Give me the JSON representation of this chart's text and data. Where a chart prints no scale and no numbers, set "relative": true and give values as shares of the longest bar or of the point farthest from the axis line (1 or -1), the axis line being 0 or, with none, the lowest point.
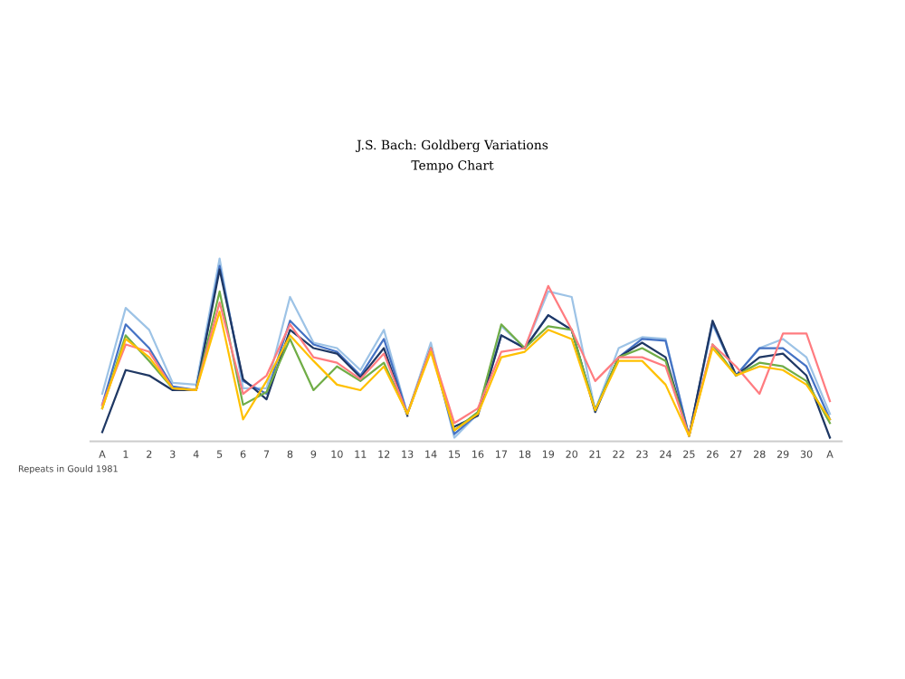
{
  "chart_data": {
    "type": "line",
    "title": "J.S. Bach: Goldberg Variations",
    "subtitle": "Tempo Chart",
    "relative": true,
    "annotations": [
      "Repeats in Gould 1981"
    ],
    "categories": [
      "A",
      "1",
      "2",
      "3",
      "4",
      "5",
      "6",
      "7",
      "8",
      "9",
      "10",
      "11",
      "12",
      "13",
      "14",
      "15",
      "16",
      "17",
      "18",
      "19",
      "20",
      "21",
      "22",
      "23",
      "24",
      "25",
      "26",
      "27",
      "28",
      "29",
      "30",
      "A"
    ],
    "series": [
      {
        "color": "#9dc3e6",
        "values": [
          0.26,
          0.73,
          0.61,
          0.32,
          0.31,
          1,
          0.29,
          0.29,
          0.79,
          0.54,
          0.51,
          0.39,
          0.61,
          0.15,
          0.54,
          0.02,
          0.15,
          0.63,
          0.51,
          0.82,
          0.79,
          0.17,
          0.51,
          0.57,
          0.56,
          0.03,
          0.64,
          0.36,
          0.51,
          0.56,
          0.46,
          0.15
        ]
      },
      {
        "color": "#4472c4",
        "values": [
          0.2,
          0.64,
          0.51,
          0.3,
          0.28,
          0.96,
          0.33,
          0.26,
          0.66,
          0.53,
          0.49,
          0.36,
          0.56,
          0.15,
          0.51,
          0.04,
          0.15,
          0.58,
          0.51,
          0.69,
          0.61,
          0.17,
          0.46,
          0.56,
          0.55,
          0.03,
          0.65,
          0.36,
          0.51,
          0.51,
          0.41,
          0.12
        ]
      },
      {
        "color": "#1f3864",
        "values": [
          0.05,
          0.39,
          0.36,
          0.28,
          0.28,
          0.94,
          0.34,
          0.23,
          0.61,
          0.51,
          0.48,
          0.35,
          0.51,
          0.14,
          null,
          0.08,
          0.14,
          0.58,
          0.51,
          0.69,
          0.61,
          0.16,
          0.46,
          0.54,
          0.46,
          0.03,
          0.66,
          0.36,
          0.46,
          0.48,
          0.36,
          0.02
        ]
      },
      {
        "color": "#70ad47",
        "values": [
          0.18,
          0.58,
          0.44,
          0.29,
          0.28,
          0.82,
          0.2,
          0.27,
          0.56,
          0.28,
          0.41,
          0.33,
          0.43,
          0.15,
          0.51,
          0.06,
          0.16,
          0.64,
          0.51,
          0.63,
          0.61,
          0.17,
          0.46,
          0.51,
          0.44,
          0.03,
          0.53,
          0.36,
          0.43,
          0.41,
          0.33,
          0.1
        ]
      },
      {
        "color": "#ff7c80",
        "values": [
          0.2,
          0.53,
          0.49,
          0.29,
          0.28,
          0.76,
          0.26,
          0.36,
          0.64,
          0.46,
          0.43,
          0.34,
          0.48,
          0.15,
          0.51,
          0.1,
          0.18,
          0.49,
          0.51,
          0.85,
          0.61,
          0.33,
          0.46,
          0.46,
          0.41,
          0.03,
          0.53,
          0.41,
          0.26,
          0.59,
          0.59,
          0.22
        ]
      },
      {
        "color": "#ffc000",
        "values": [
          0.18,
          0.56,
          0.46,
          0.29,
          0.28,
          0.71,
          0.12,
          0.33,
          0.58,
          0.44,
          0.31,
          0.28,
          0.41,
          0.15,
          0.49,
          0.06,
          0.15,
          0.46,
          0.49,
          0.61,
          0.56,
          0.17,
          0.44,
          0.44,
          0.31,
          0.03,
          0.51,
          0.36,
          0.41,
          0.39,
          0.31,
          0.12
        ]
      }
    ]
  }
}
